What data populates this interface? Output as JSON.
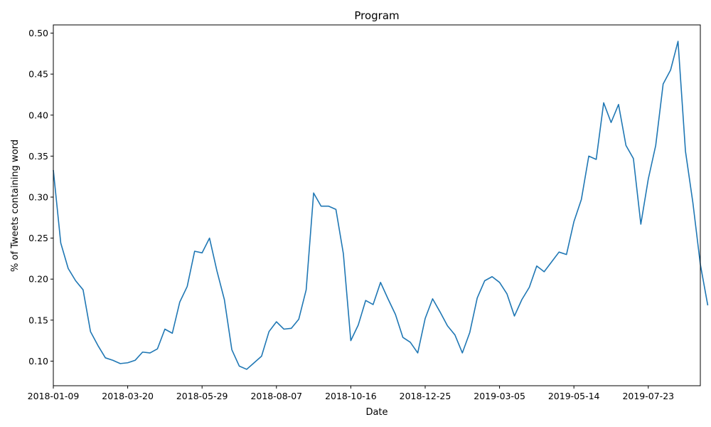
{
  "chart_data": {
    "type": "line",
    "title": "Program",
    "xlabel": "Date",
    "ylabel": "% of Tweets containing word",
    "ylim": [
      0.07,
      0.51
    ],
    "yticks": [
      "0.10",
      "0.15",
      "0.20",
      "0.25",
      "0.30",
      "0.35",
      "0.40",
      "0.45",
      "0.50"
    ],
    "xtick_labels": [
      "2018-01-09",
      "2018-03-20",
      "2018-05-29",
      "2018-08-07",
      "2018-10-16",
      "2018-12-25",
      "2019-03-05",
      "2019-05-14",
      "2019-07-23"
    ],
    "x_start": "2018-01-09",
    "x_end": "2019-09-10",
    "x_step_days": 7,
    "line_color": "#1f77b4",
    "grid": false,
    "series": [
      {
        "values": [
          0.333,
          0.244,
          0.213,
          0.198,
          0.187,
          0.136,
          0.119,
          0.104,
          0.101,
          0.097,
          0.098,
          0.101,
          0.111,
          0.11,
          0.115,
          0.139,
          0.134,
          0.172,
          0.191,
          0.234,
          0.232,
          0.25,
          0.21,
          0.175,
          0.114,
          0.094,
          0.09,
          0.098,
          0.106,
          0.136,
          0.148,
          0.139,
          0.14,
          0.151,
          0.187,
          0.305,
          0.289,
          0.289,
          0.285,
          0.231,
          0.125,
          0.144,
          0.174,
          0.169,
          0.196,
          0.176,
          0.157,
          0.129,
          0.123,
          0.11,
          0.152,
          0.176,
          0.16,
          0.143,
          0.132,
          0.11,
          0.135,
          0.177,
          0.198,
          0.203,
          0.196,
          0.182,
          0.155,
          0.175,
          0.19,
          0.216,
          0.209,
          0.221,
          0.233,
          0.23,
          0.27,
          0.297,
          0.35,
          0.346,
          0.415,
          0.391,
          0.413,
          0.363,
          0.347,
          0.267,
          0.322,
          0.363,
          0.438,
          0.455,
          0.49,
          0.356,
          0.293,
          0.218,
          0.168
        ]
      }
    ]
  }
}
